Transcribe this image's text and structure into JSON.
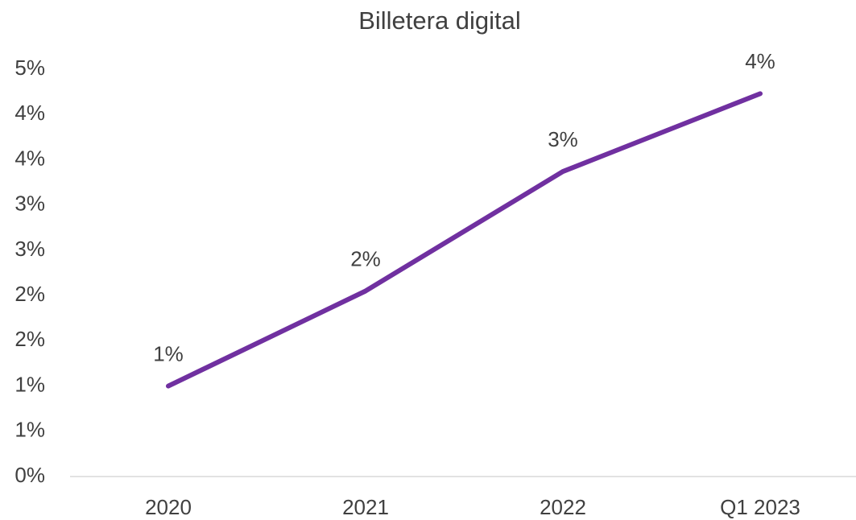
{
  "chart_data": {
    "type": "line",
    "title": "Billetera digital",
    "categories": [
      "2020",
      "2021",
      "2022",
      "Q1 2023"
    ],
    "series": [
      {
        "name": "Billetera digital",
        "color": "#7030a0",
        "values": [
          1.0,
          2.05,
          3.37,
          4.23
        ],
        "value_labels": [
          "1%",
          "2%",
          "3%",
          "4%"
        ]
      }
    ],
    "ylim": [
      0,
      4.5
    ],
    "yticks": [
      {
        "value": 0,
        "label": "0%"
      },
      {
        "value": 0.5,
        "label": "1%"
      },
      {
        "value": 1,
        "label": "1%"
      },
      {
        "value": 1.5,
        "label": "2%"
      },
      {
        "value": 2,
        "label": "2%"
      },
      {
        "value": 2.5,
        "label": "3%"
      },
      {
        "value": 3,
        "label": "3%"
      },
      {
        "value": 3.5,
        "label": "4%"
      },
      {
        "value": 4,
        "label": "4%"
      },
      {
        "value": 4.5,
        "label": "5%"
      }
    ],
    "grid": false
  }
}
